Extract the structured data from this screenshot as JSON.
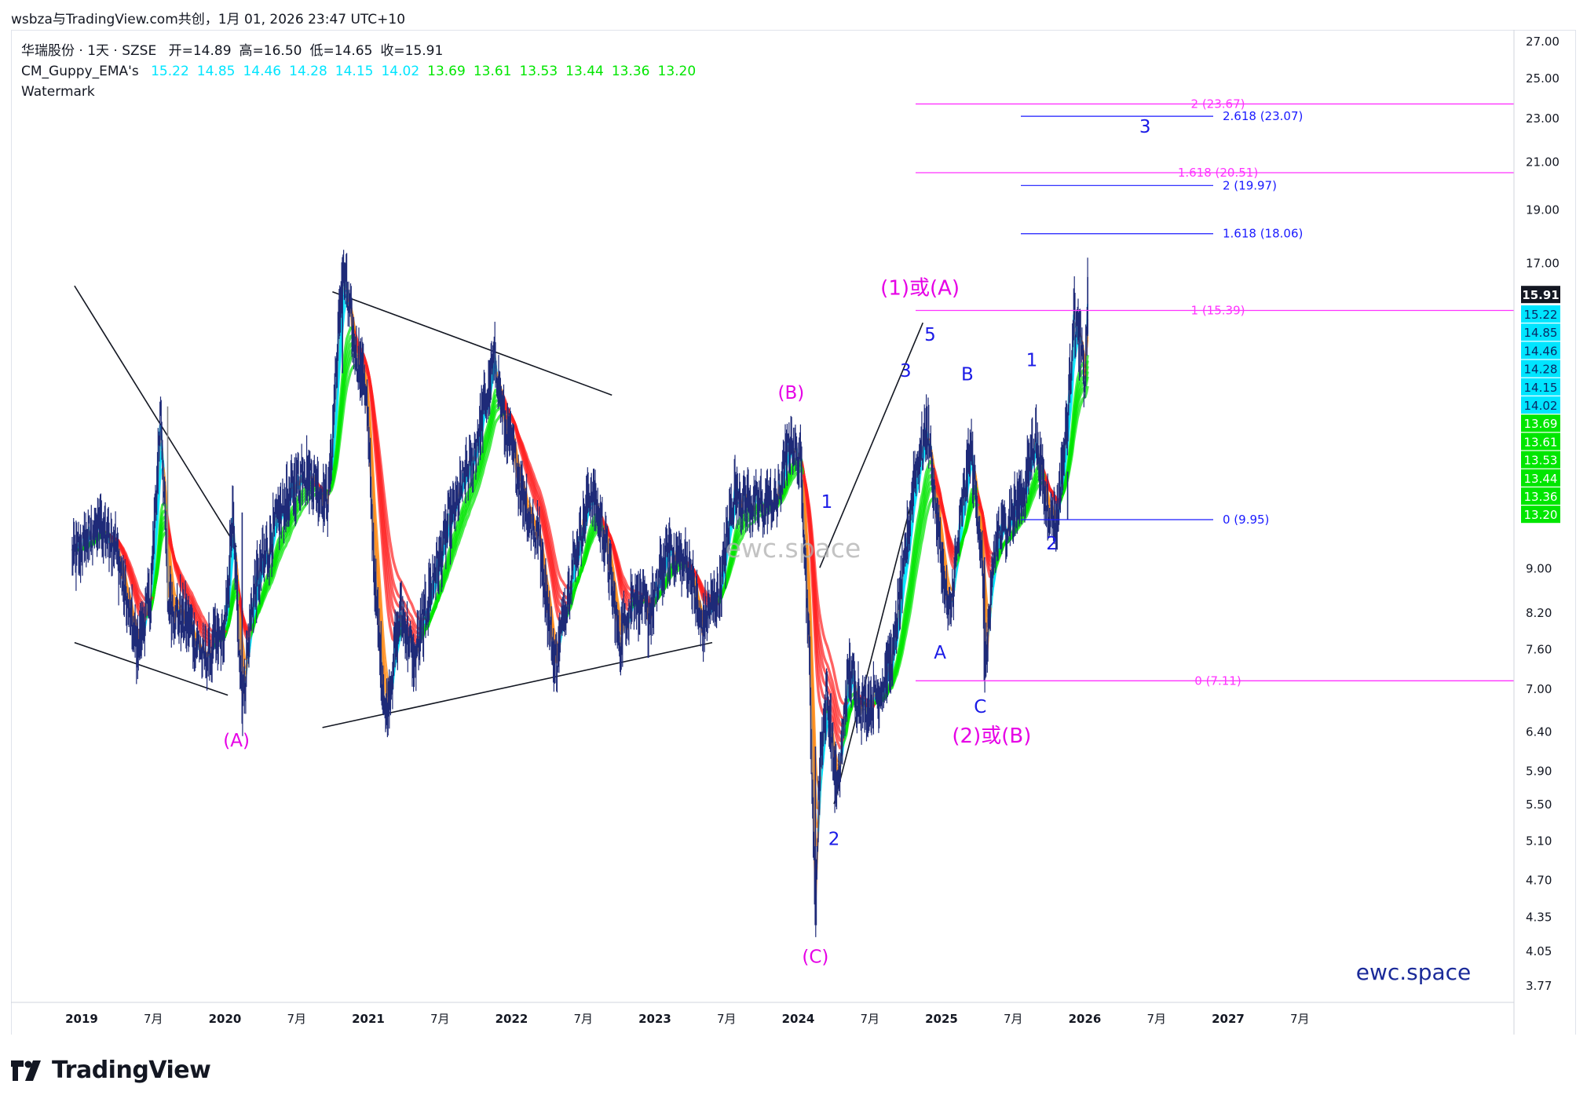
{
  "header": {
    "title": "wsbza与TradingView.com共创，1月 01, 2026 23:47 UTC+10"
  },
  "legend": {
    "symbol_line": "华瑞股份 · 1天 · SZSE",
    "ohlc": [
      {
        "label": "开",
        "value": "14.89"
      },
      {
        "label": "高",
        "value": "16.50"
      },
      {
        "label": "低",
        "value": "14.65"
      },
      {
        "label": "收",
        "value": "15.91"
      }
    ],
    "indicator_name": "CM_Guppy_EMA's",
    "indicator_values": [
      {
        "value": "15.22",
        "color": "#00e5ff"
      },
      {
        "value": "14.85",
        "color": "#00e5ff"
      },
      {
        "value": "14.46",
        "color": "#00e5ff"
      },
      {
        "value": "14.28",
        "color": "#00e5ff"
      },
      {
        "value": "14.15",
        "color": "#00e5ff"
      },
      {
        "value": "14.02",
        "color": "#00e5ff"
      },
      {
        "value": "13.69",
        "color": "#00e600"
      },
      {
        "value": "13.61",
        "color": "#00e600"
      },
      {
        "value": "13.53",
        "color": "#00e600"
      },
      {
        "value": "13.44",
        "color": "#00e600"
      },
      {
        "value": "13.36",
        "color": "#00e600"
      },
      {
        "value": "13.20",
        "color": "#00e600"
      }
    ],
    "watermark_label": "Watermark"
  },
  "chart_data": {
    "type": "candlestick",
    "scale": "log",
    "y_ticks": [
      "27.00",
      "25.00",
      "23.00",
      "21.00",
      "19.00",
      "17.00",
      "9.00",
      "8.20",
      "7.60",
      "7.00",
      "6.40",
      "5.90",
      "5.50",
      "5.10",
      "4.70",
      "4.35",
      "4.05",
      "3.77"
    ],
    "x_ticks": [
      "2019",
      "7月",
      "2020",
      "7月",
      "2021",
      "7月",
      "2022",
      "7月",
      "2023",
      "7月",
      "2024",
      "7月",
      "2025",
      "7月",
      "2026",
      "7月",
      "2027",
      "7月"
    ],
    "last_price": "15.91",
    "price_badges": [
      {
        "value": "15.22",
        "color": "#00e5ff"
      },
      {
        "value": "14.85",
        "color": "#00e5ff"
      },
      {
        "value": "14.46",
        "color": "#00e5ff"
      },
      {
        "value": "14.28",
        "color": "#00e5ff"
      },
      {
        "value": "14.15",
        "color": "#00e5ff"
      },
      {
        "value": "14.02",
        "color": "#00e5ff"
      },
      {
        "value": "13.69",
        "color": "#00e600"
      },
      {
        "value": "13.61",
        "color": "#00e600"
      },
      {
        "value": "13.53",
        "color": "#00e600"
      },
      {
        "value": "13.44",
        "color": "#00e600"
      },
      {
        "value": "13.36",
        "color": "#00e600"
      },
      {
        "value": "13.20",
        "color": "#00e600"
      }
    ],
    "fib_magenta": [
      {
        "label": "2 (23.67)",
        "value": 23.67
      },
      {
        "label": "1.618 (20.51)",
        "value": 20.51
      },
      {
        "label": "1 (15.39)",
        "value": 15.39
      },
      {
        "label": "0 (7.11)",
        "value": 7.11
      }
    ],
    "fib_blue": [
      {
        "label": "2.618 (23.07)",
        "value": 23.07
      },
      {
        "label": "2 (19.97)",
        "value": 19.97
      },
      {
        "label": "1.618 (18.06)",
        "value": 18.06
      },
      {
        "label": "0 (9.95)",
        "value": 9.95
      }
    ],
    "wave_labels_magenta": [
      "(A)",
      "(B)",
      "(C)",
      "(1)或(A)",
      "(2)或(B)"
    ],
    "wave_labels_blue": [
      "1",
      "2",
      "3",
      "5",
      "A",
      "B",
      "C",
      "1",
      "2",
      "3"
    ],
    "watermark_center": "ewc.space",
    "watermark_corner": "ewc.space",
    "colors": {
      "fib_magenta": "#ff33ff",
      "fib_blue": "#1a1aff",
      "ema_up_fast": "#00e5ff",
      "ema_up_slow": "#00e600",
      "ema_down_fast": "#ff8c1a",
      "ema_down_slow": "#ff2020",
      "label_magenta": "#e600e6",
      "label_blue": "#1a1ae6",
      "last_price_bg": "#131722"
    }
  },
  "footer": {
    "brand": "TradingView"
  }
}
